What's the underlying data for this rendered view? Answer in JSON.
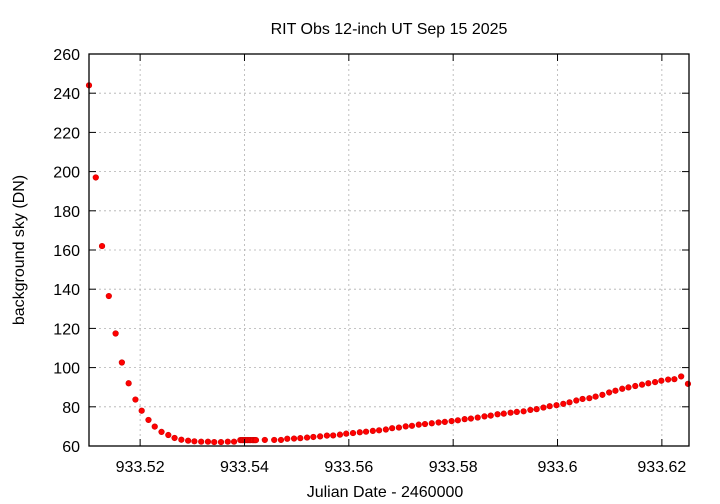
{
  "chart_data": {
    "type": "scatter",
    "title": "RIT Obs 12-inch UT Sep 15 2025",
    "xlabel": "Julian Date - 2460000",
    "ylabel": "background sky (DN)",
    "xlim": [
      933.5102,
      933.6252
    ],
    "ylim": [
      60,
      260
    ],
    "grid": true,
    "legend": "none",
    "xticks": [
      933.52,
      933.54,
      933.56,
      933.58,
      933.6,
      933.62
    ],
    "xtick_labels": [
      "933.52",
      "933.54",
      "933.56",
      "933.58",
      "933.6",
      "933.62"
    ],
    "yticks": [
      60,
      80,
      100,
      120,
      140,
      160,
      180,
      200,
      220,
      240,
      260
    ],
    "ytick_labels": [
      "60",
      "80",
      "100",
      "120",
      "140",
      "160",
      "180",
      "200",
      "220",
      "240",
      "260"
    ],
    "marker_color": "#ff0000",
    "series": [
      {
        "name": "background sky",
        "x": [
          933.5102,
          933.5115,
          933.5127,
          933.514,
          933.5153,
          933.5165,
          933.5178,
          933.5191,
          933.5203,
          933.5216,
          933.5228,
          933.5241,
          933.5254,
          933.5266,
          933.5279,
          933.5292,
          933.5304,
          933.5317,
          933.533,
          933.5342,
          933.5355,
          933.5368,
          933.538,
          933.5392,
          933.5395,
          933.5397,
          933.54,
          933.5402,
          933.5405,
          933.5407,
          933.541,
          933.5412,
          933.5415,
          933.5417,
          933.542,
          933.5422,
          933.5439,
          933.5457,
          933.547,
          933.5482,
          933.5495,
          933.5507,
          933.552,
          933.5532,
          933.5545,
          933.5558,
          933.557,
          933.5583,
          933.5595,
          933.5608,
          933.5621,
          933.5633,
          933.5646,
          933.5658,
          933.5671,
          933.5683,
          933.5696,
          933.5709,
          933.5721,
          933.5734,
          933.5746,
          933.5759,
          933.5772,
          933.5784,
          933.5797,
          933.5809,
          933.5822,
          933.5834,
          933.5847,
          933.586,
          933.5872,
          933.5885,
          933.5897,
          933.591,
          933.5922,
          933.5935,
          933.5948,
          933.596,
          933.5973,
          933.5985,
          933.5998,
          933.6011,
          933.6023,
          933.6036,
          933.6048,
          933.6061,
          933.6073,
          933.6086,
          933.6099,
          933.6111,
          933.6124,
          933.6136,
          933.6149,
          933.6162,
          933.6174,
          933.6187,
          933.6199,
          933.6212,
          933.6224,
          933.6237,
          933.625
        ],
        "y": [
          244,
          197,
          162,
          136.5,
          117.4,
          102.6,
          92,
          83.7,
          78,
          73.3,
          69.9,
          67.2,
          65.6,
          64.1,
          63.2,
          62.7,
          62.4,
          62.2,
          62.2,
          62,
          62,
          62.2,
          62.2,
          63,
          63,
          63,
          63,
          63,
          63,
          63,
          63,
          63,
          63,
          63,
          63,
          63,
          63.1,
          63.1,
          63.1,
          63.7,
          63.8,
          64.0,
          64.3,
          64.6,
          64.9,
          65.3,
          65.4,
          65.8,
          66.3,
          66.6,
          67.0,
          67.3,
          67.7,
          68.0,
          68.4,
          69.1,
          69.4,
          70.0,
          70.3,
          70.9,
          71.2,
          71.6,
          72.0,
          72.3,
          72.7,
          73.1,
          73.7,
          74.0,
          74.5,
          75.1,
          75.5,
          76.2,
          76.5,
          77.0,
          77.4,
          77.7,
          78.4,
          78.8,
          79.6,
          80.3,
          80.8,
          81.5,
          82.3,
          83.2,
          84.0,
          84.4,
          85.2,
          86.1,
          87.3,
          88.2,
          89.2,
          89.9,
          90.6,
          91.3,
          92.0,
          92.6,
          93.3,
          93.9,
          94.1,
          95.5,
          91.7
        ]
      }
    ]
  }
}
